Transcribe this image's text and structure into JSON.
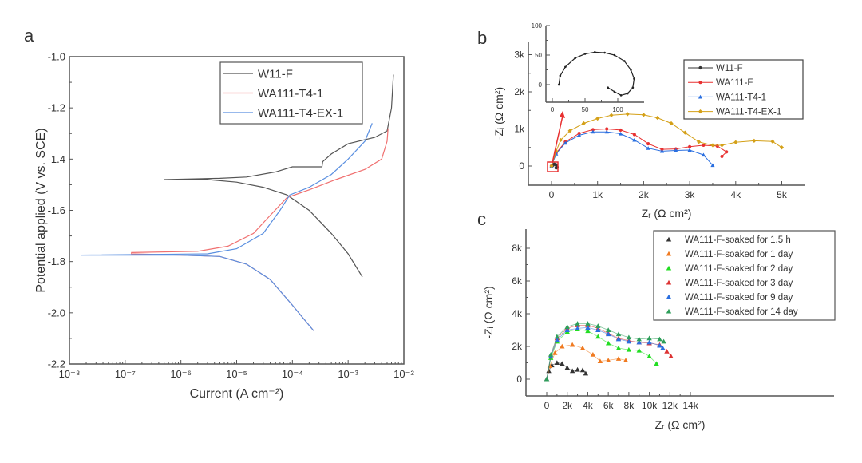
{
  "chart_data": [
    {
      "panel_label": "a",
      "type": "line",
      "xlabel": "Current (A cm⁻²)",
      "ylabel": "Potential applied (V vs. SCE)",
      "xscale": "log",
      "xlim": [
        1e-08,
        0.01
      ],
      "ylim": [
        -2.2,
        -1.0
      ],
      "xticks": [
        1e-08,
        1e-07,
        1e-06,
        1e-05,
        0.0001,
        0.001,
        0.01
      ],
      "xtick_labels": [
        "10⁻⁸",
        "10⁻⁷",
        "10⁻⁶",
        "10⁻⁵",
        "10⁻⁴",
        "10⁻³",
        "10⁻²"
      ],
      "yticks": [
        -2.2,
        -2.0,
        -1.8,
        -1.6,
        -1.4,
        -1.2,
        -1.0
      ],
      "ytick_labels": [
        "-2.2",
        "-2.0",
        "-1.8",
        "-1.6",
        "-1.4",
        "-1.2",
        "-1.0"
      ],
      "legend_position": "top-right",
      "grid": false,
      "series": [
        {
          "name": "W11-F",
          "color": "#555555",
          "x": [
            0.0018,
            0.001,
            0.0005,
            0.0002,
            8e-05,
            3e-05,
            1e-05,
            3e-06,
            5e-07,
            5e-07,
            5e-06,
            1.5e-05,
            5e-05,
            0.0001,
            0.00034,
            0.00035,
            0.0005,
            0.001,
            0.003,
            0.005,
            0.006,
            0.0065
          ],
          "y": [
            -1.86,
            -1.77,
            -1.69,
            -1.6,
            -1.54,
            -1.51,
            -1.49,
            -1.48,
            -1.48,
            -1.48,
            -1.475,
            -1.47,
            -1.45,
            -1.43,
            -1.43,
            -1.41,
            -1.38,
            -1.34,
            -1.315,
            -1.29,
            -1.2,
            -1.07
          ]
        },
        {
          "name": "WA111-T4-1",
          "color": "#f07070",
          "x": [
            0.00024,
            0.0001,
            4e-05,
            1.5e-05,
            5e-06,
            1e-06,
            1.3e-07,
            1.3e-07,
            2e-06,
            7e-06,
            2e-05,
            4e-05,
            8e-05,
            0.0002,
            0.0006,
            0.002,
            0.004,
            0.005,
            0.0052
          ],
          "y": [
            -2.07,
            -1.97,
            -1.87,
            -1.81,
            -1.78,
            -1.775,
            -1.77,
            -1.765,
            -1.76,
            -1.74,
            -1.69,
            -1.62,
            -1.55,
            -1.52,
            -1.48,
            -1.44,
            -1.4,
            -1.33,
            -1.28
          ]
        },
        {
          "name": "WA111-T4-EX-1",
          "color": "#5a8fe0",
          "x": [
            0.00024,
            0.0001,
            4e-05,
            1.5e-05,
            5e-06,
            1e-06,
            1.6e-08,
            1.6e-08,
            3e-06,
            1e-05,
            3e-05,
            6e-05,
            9e-05,
            0.0002,
            0.0005,
            0.001,
            0.002,
            0.0027
          ],
          "y": [
            -2.07,
            -1.97,
            -1.87,
            -1.81,
            -1.78,
            -1.775,
            -1.775,
            -1.775,
            -1.77,
            -1.75,
            -1.69,
            -1.6,
            -1.54,
            -1.51,
            -1.46,
            -1.4,
            -1.33,
            -1.26
          ]
        }
      ]
    },
    {
      "panel_label": "b",
      "type": "scatter",
      "xlabel": "Zᵣ (Ω cm²)",
      "ylabel": "-Zᵢ (Ω cm²)",
      "xlim": [
        -500,
        5500
      ],
      "ylim": [
        -450,
        3550
      ],
      "xticks": [
        0,
        1000,
        2000,
        3000,
        4000,
        5000
      ],
      "xtick_labels": [
        "0",
        "1k",
        "2k",
        "3k",
        "4k",
        "5k"
      ],
      "yticks": [
        0,
        1000,
        2000,
        3000
      ],
      "ytick_labels": [
        "0",
        "1k",
        "2k",
        "3k"
      ],
      "legend_position": "top-right",
      "grid": false,
      "series": [
        {
          "name": "W11-F",
          "color": "#333333",
          "marker": "circle",
          "x": [
            0,
            30,
            60,
            100,
            120,
            100
          ],
          "y": [
            0,
            20,
            50,
            30,
            -30,
            -50
          ]
        },
        {
          "name": "WA111-F",
          "color": "#e83030",
          "marker": "circle",
          "x": [
            0,
            100,
            300,
            600,
            900,
            1200,
            1500,
            1800,
            2100,
            2400,
            2700,
            3000,
            3300,
            3600,
            3800,
            3700
          ],
          "y": [
            0,
            350,
            650,
            880,
            980,
            1000,
            970,
            850,
            600,
            450,
            460,
            520,
            560,
            540,
            380,
            260
          ]
        },
        {
          "name": "WA111-T4-1",
          "color": "#2a6fe0",
          "marker": "triangle",
          "x": [
            0,
            100,
            300,
            600,
            900,
            1200,
            1500,
            1800,
            2100,
            2400,
            2700,
            3000,
            3300,
            3500
          ],
          "y": [
            0,
            330,
            620,
            830,
            920,
            920,
            870,
            700,
            480,
            400,
            420,
            430,
            300,
            20
          ]
        },
        {
          "name": "WA111-T4-EX-1",
          "color": "#d4a017",
          "marker": "diamond",
          "x": [
            0,
            100,
            200,
            400,
            700,
            1000,
            1300,
            1650,
            2000,
            2300,
            2600,
            2900,
            3200,
            3500,
            3700,
            4000,
            4400,
            4800,
            5000
          ],
          "y": [
            0,
            400,
            700,
            950,
            1150,
            1280,
            1370,
            1400,
            1380,
            1300,
            1150,
            900,
            650,
            560,
            560,
            640,
            680,
            660,
            500
          ]
        }
      ],
      "inset": {
        "xlim": [
          -10,
          140
        ],
        "ylim": [
          -30,
          100
        ],
        "xticks": [
          0,
          50,
          100
        ],
        "xtick_labels": [
          "0",
          "50",
          "100"
        ],
        "yticks": [
          0,
          50,
          100
        ],
        "ytick_labels": [
          "0",
          "50",
          "100"
        ],
        "series": [
          {
            "name": "W11-F",
            "color": "#222222",
            "x": [
              10,
              12,
              20,
              35,
              50,
              65,
              80,
              95,
              110,
              120,
              125,
              123,
              115,
              105,
              95,
              85
            ],
            "y": [
              0,
              15,
              30,
              45,
              52,
              55,
              54,
              50,
              40,
              25,
              10,
              -5,
              -15,
              -18,
              -12,
              -5
            ]
          }
        ]
      }
    },
    {
      "panel_label": "c",
      "type": "scatter",
      "xlabel": "Zᵣ (Ω cm²)",
      "ylabel": "-Zᵢ (Ω cm²)",
      "xlim": [
        -1000,
        14000
      ],
      "ylim": [
        -1000,
        9200
      ],
      "xticks": [
        0,
        2000,
        4000,
        6000,
        8000,
        10000,
        12000,
        14000
      ],
      "xtick_labels": [
        "0",
        "2k",
        "4k",
        "6k",
        "8k",
        "10k",
        "12k",
        "14k"
      ],
      "yticks": [
        0,
        2000,
        4000,
        6000,
        8000
      ],
      "ytick_labels": [
        "0",
        "2k",
        "4k",
        "6k",
        "8k"
      ],
      "legend_position": "top-right",
      "grid": false,
      "series": [
        {
          "name": "WA111-F-soaked for 1.5 h",
          "color": "#333333",
          "marker": "triangle",
          "x": [
            0,
            200,
            500,
            1000,
            1500,
            2000,
            2500,
            3000,
            3500,
            3800
          ],
          "y": [
            0,
            500,
            850,
            1000,
            950,
            700,
            500,
            580,
            550,
            350
          ]
        },
        {
          "name": "WA111-F-soaked for 1 day",
          "color": "#f07a20",
          "marker": "triangle",
          "x": [
            0,
            300,
            800,
            1500,
            2500,
            3500,
            4500,
            5200,
            6000,
            7000,
            7700
          ],
          "y": [
            0,
            800,
            1600,
            2000,
            2100,
            1900,
            1500,
            1100,
            1150,
            1250,
            1150
          ]
        },
        {
          "name": "WA111-F-soaked for 2 day",
          "color": "#22dd22",
          "marker": "triangle",
          "x": [
            0,
            400,
            1000,
            2000,
            3000,
            4000,
            5000,
            6000,
            7000,
            8000,
            9000,
            10000,
            10700
          ],
          "y": [
            0,
            1300,
            2300,
            2900,
            3050,
            2950,
            2600,
            2200,
            1900,
            1800,
            1750,
            1400,
            950
          ]
        },
        {
          "name": "WA111-F-soaked for 3 day",
          "color": "#dd3333",
          "marker": "triangle",
          "x": [
            0,
            400,
            1000,
            2000,
            3000,
            4000,
            5000,
            6000,
            7000,
            8000,
            9000,
            10000,
            11000,
            11700,
            12100
          ],
          "y": [
            0,
            1400,
            2500,
            3100,
            3300,
            3300,
            3100,
            2800,
            2500,
            2350,
            2250,
            2200,
            2100,
            1700,
            1400
          ]
        },
        {
          "name": "WA111-F-soaked for 9 day",
          "color": "#2a6fe0",
          "marker": "triangle",
          "x": [
            0,
            400,
            1000,
            2000,
            3000,
            4000,
            5000,
            6000,
            7000,
            8000,
            9000,
            10000,
            11000,
            11300
          ],
          "y": [
            0,
            1400,
            2400,
            3000,
            3100,
            3150,
            3000,
            2750,
            2450,
            2300,
            2250,
            2250,
            2050,
            1900
          ]
        },
        {
          "name": "WA111-F-soaked for 14 day",
          "color": "#2e9e5a",
          "marker": "triangle",
          "x": [
            0,
            400,
            1000,
            2000,
            3000,
            4000,
            5000,
            6000,
            7000,
            8000,
            9000,
            10000,
            11000,
            11400
          ],
          "y": [
            0,
            1500,
            2600,
            3200,
            3400,
            3400,
            3250,
            3000,
            2750,
            2550,
            2450,
            2500,
            2450,
            2300
          ]
        }
      ]
    }
  ]
}
